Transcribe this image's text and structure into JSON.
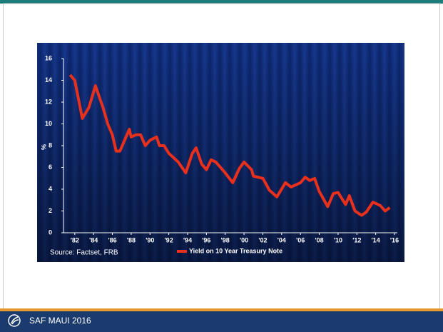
{
  "chart_data": {
    "type": "line",
    "y_label": "%",
    "source": "Source: Factset, FRB",
    "x": [
      1981.5,
      1982,
      1982.8,
      1983.5,
      1984.2,
      1984.8,
      1985,
      1985.5,
      1986,
      1986.4,
      1986.8,
      1987.3,
      1987.8,
      1988,
      1988.5,
      1989,
      1989.5,
      1990,
      1990.7,
      1991,
      1991.5,
      1992,
      1993,
      1993.8,
      1994.5,
      1994.9,
      1995.5,
      1996,
      1996.5,
      1997,
      1998,
      1998.8,
      1999.5,
      2000,
      2000.8,
      2001,
      2002,
      2002.7,
      2003.5,
      2004.4,
      2005,
      2006,
      2006.5,
      2007,
      2007.5,
      2008,
      2008.9,
      2009.5,
      2010,
      2010.8,
      2011.2,
      2011.8,
      2012.5,
      2013,
      2013.7,
      2014,
      2014.5,
      2015,
      2015.5
    ],
    "series": [
      {
        "name": "Yield on 10 Year Treasury Note",
        "color": "#e8301c",
        "values": [
          14.5,
          14,
          10.5,
          11.5,
          13.5,
          12,
          11.5,
          10,
          9,
          7.5,
          7.5,
          8.5,
          9.5,
          8.8,
          9,
          9,
          8,
          8.5,
          8.8,
          8,
          8,
          7.3,
          6.5,
          5.5,
          7.3,
          7.8,
          6.3,
          5.8,
          6.7,
          6.5,
          5.5,
          4.6,
          5.9,
          6.5,
          5.8,
          5.2,
          5,
          3.9,
          3.3,
          4.6,
          4.2,
          4.6,
          5.1,
          4.8,
          5,
          3.8,
          2.4,
          3.6,
          3.7,
          2.6,
          3.4,
          2,
          1.6,
          1.9,
          2.8,
          2.7,
          2.5,
          2,
          2.3
        ]
      }
    ],
    "xlim": [
      1980.8,
      2016
    ],
    "ylim": [
      0,
      16
    ],
    "yticks": [
      0,
      2,
      4,
      6,
      8,
      10,
      12,
      14,
      16
    ],
    "xticks": [
      {
        "value": 1982,
        "label": "'82"
      },
      {
        "value": 1984,
        "label": "'84"
      },
      {
        "value": 1986,
        "label": "'86"
      },
      {
        "value": 1988,
        "label": "'88"
      },
      {
        "value": 1990,
        "label": "'90"
      },
      {
        "value": 1992,
        "label": "'92"
      },
      {
        "value": 1994,
        "label": "'94"
      },
      {
        "value": 1996,
        "label": "'96"
      },
      {
        "value": 1998,
        "label": "'98"
      },
      {
        "value": 2000,
        "label": "'00"
      },
      {
        "value": 2002,
        "label": "'02"
      },
      {
        "value": 2004,
        "label": "'04"
      },
      {
        "value": 2006,
        "label": "'06"
      },
      {
        "value": 2008,
        "label": "'08"
      },
      {
        "value": 2010,
        "label": "'10"
      },
      {
        "value": 2012,
        "label": "'12"
      },
      {
        "value": 2014,
        "label": "'14"
      },
      {
        "value": 2016,
        "label": "'16"
      }
    ]
  },
  "footer": {
    "text": "SAF MAUI 2016"
  }
}
